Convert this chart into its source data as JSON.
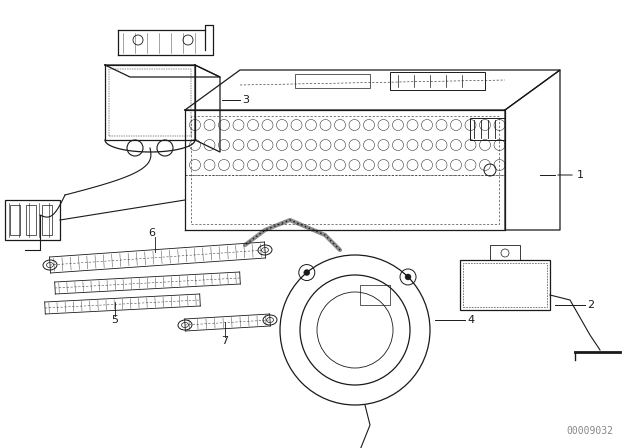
{
  "background_color": "#ffffff",
  "line_color": "#1a1a1a",
  "fig_width": 6.4,
  "fig_height": 4.48,
  "dpi": 100,
  "watermark": "00009032",
  "watermark_color": "#888888"
}
